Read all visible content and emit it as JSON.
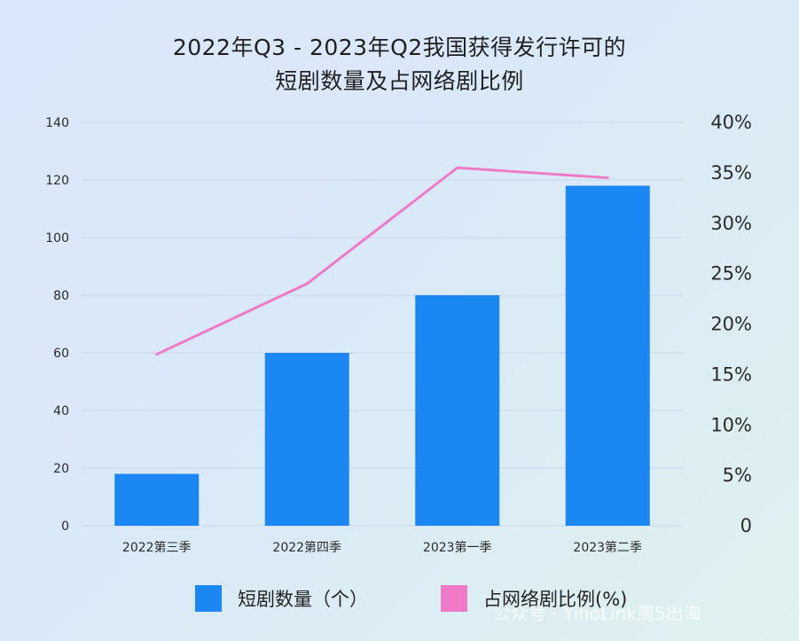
{
  "title_line1": "2022年Q3 - 2023年Q2我国获得发行许可的",
  "title_line2": "短剧数量及占网络剧比例",
  "legend": {
    "bar_label": "短剧数量（个）",
    "line_label": "占网络剧比例(%)"
  },
  "watermark": "公众号 · YinoLink周5出海",
  "colors": {
    "bar": "#1a87f3",
    "line": "#f07ac8",
    "grid": "#c9d6ea",
    "text": "#2a2a2a"
  },
  "chart_data": {
    "type": "bar",
    "categories": [
      "2022第三季",
      "2022第四季",
      "2023第一季",
      "2023第二季"
    ],
    "series": [
      {
        "type": "bar",
        "axis": "left",
        "values": [
          18,
          60,
          80,
          118
        ]
      },
      {
        "type": "line",
        "axis": "right",
        "values": [
          17,
          24,
          35.5,
          34.5
        ]
      }
    ],
    "left_axis": {
      "ylim": [
        0,
        140
      ],
      "ticks": [
        "0",
        "20",
        "40",
        "60",
        "80",
        "100",
        "120",
        "140"
      ]
    },
    "right_axis": {
      "ylim": [
        0,
        40
      ],
      "ticks": [
        "0",
        "5%",
        "10%",
        "15%",
        "20%",
        "25%",
        "30%",
        "35%",
        "40%"
      ]
    },
    "grid": true,
    "legend_position": "bottom"
  }
}
